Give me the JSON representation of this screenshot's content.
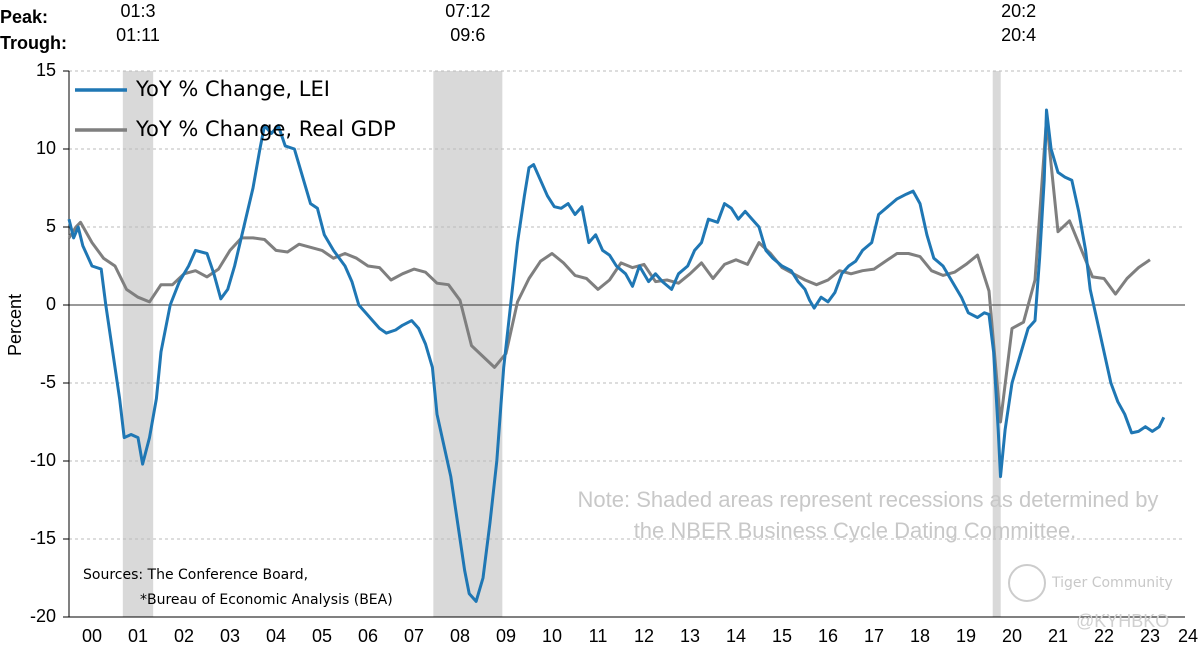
{
  "chart_data": {
    "type": "line",
    "peak_label": "Peak:",
    "trough_label": "Trough:",
    "y_label": "Percent",
    "recessions": [
      {
        "peak": "01:3",
        "trough": "01:11",
        "start": 2001.17,
        "end": 2001.83
      },
      {
        "peak": "07:12",
        "trough": "09:6",
        "start": 2007.92,
        "end": 2009.42
      },
      {
        "peak": "20:2",
        "trough": "20:4",
        "start": 2020.08,
        "end": 2020.25
      }
    ],
    "note": [
      "Note: Shaded areas represent recessions as determined by",
      "the NBER Business Cycle Dating Committee."
    ],
    "sources": [
      "Sources: The Conference Board,",
      "*Bureau of Economic Analysis (BEA)"
    ],
    "watermarks": [
      "Tiger Community",
      "@KYHBKO"
    ],
    "xlim": [
      2000,
      2024.26
    ],
    "xticks": [
      {
        "value": 2000.5,
        "label": "00"
      },
      {
        "value": 2001.5,
        "label": "01"
      },
      {
        "value": 2002.5,
        "label": "02"
      },
      {
        "value": 2003.5,
        "label": "03"
      },
      {
        "value": 2004.5,
        "label": "04"
      },
      {
        "value": 2005.5,
        "label": "05"
      },
      {
        "value": 2006.5,
        "label": "06"
      },
      {
        "value": 2007.5,
        "label": "07"
      },
      {
        "value": 2008.5,
        "label": "08"
      },
      {
        "value": 2009.5,
        "label": "09"
      },
      {
        "value": 2010.5,
        "label": "10"
      },
      {
        "value": 2011.5,
        "label": "11"
      },
      {
        "value": 2012.5,
        "label": "12"
      },
      {
        "value": 2013.5,
        "label": "13"
      },
      {
        "value": 2014.5,
        "label": "14"
      },
      {
        "value": 2015.5,
        "label": "15"
      },
      {
        "value": 2016.5,
        "label": "16"
      },
      {
        "value": 2017.5,
        "label": "17"
      },
      {
        "value": 2018.5,
        "label": "18"
      },
      {
        "value": 2019.5,
        "label": "19"
      },
      {
        "value": 2020.5,
        "label": "20"
      },
      {
        "value": 2021.5,
        "label": "21"
      },
      {
        "value": 2022.5,
        "label": "22"
      },
      {
        "value": 2023.5,
        "label": "23"
      },
      {
        "value": 2024.5,
        "label": "24"
      }
    ],
    "ylim": [
      -20,
      15
    ],
    "yticks": [
      15,
      10,
      5,
      0,
      -5,
      -10,
      -15,
      -20
    ],
    "grid": true,
    "legend": "top-left",
    "series": [
      {
        "name": "YoY % Change, LEI",
        "color": "#1f77b4",
        "x": [
          2000.0,
          2000.1,
          2000.2,
          2000.3,
          2000.5,
          2000.7,
          2000.8,
          2001.0,
          2001.1,
          2001.2,
          2001.35,
          2001.5,
          2001.6,
          2001.75,
          2001.9,
          2002.0,
          2002.2,
          2002.4,
          2002.6,
          2002.75,
          2003.0,
          2003.15,
          2003.3,
          2003.45,
          2003.6,
          2003.8,
          2004.0,
          2004.15,
          2004.25,
          2004.4,
          2004.55,
          2004.7,
          2004.9,
          2005.0,
          2005.1,
          2005.25,
          2005.4,
          2005.55,
          2005.75,
          2006.0,
          2006.15,
          2006.3,
          2006.45,
          2006.6,
          2006.75,
          2006.9,
          2007.1,
          2007.25,
          2007.45,
          2007.6,
          2007.75,
          2007.9,
          2008.0,
          2008.15,
          2008.3,
          2008.45,
          2008.6,
          2008.7,
          2008.85,
          2009.0,
          2009.15,
          2009.3,
          2009.45,
          2009.6,
          2009.75,
          2009.9,
          2010.0,
          2010.1,
          2010.25,
          2010.4,
          2010.55,
          2010.7,
          2010.85,
          2011.0,
          2011.15,
          2011.3,
          2011.45,
          2011.6,
          2011.75,
          2011.9,
          2012.1,
          2012.25,
          2012.4,
          2012.6,
          2012.75,
          2012.9,
          2013.1,
          2013.25,
          2013.45,
          2013.6,
          2013.75,
          2013.9,
          2014.1,
          2014.25,
          2014.4,
          2014.55,
          2014.7,
          2014.85,
          2015.0,
          2015.15,
          2015.3,
          2015.5,
          2015.7,
          2015.85,
          2016.0,
          2016.1,
          2016.2,
          2016.35,
          2016.5,
          2016.65,
          2016.8,
          2016.95,
          2017.1,
          2017.25,
          2017.45,
          2017.6,
          2017.8,
          2018.0,
          2018.2,
          2018.35,
          2018.5,
          2018.65,
          2018.8,
          2019.0,
          2019.2,
          2019.4,
          2019.55,
          2019.75,
          2019.9,
          2020.0,
          2020.1,
          2020.2,
          2020.25,
          2020.35,
          2020.5,
          2020.7,
          2020.85,
          2021.0,
          2021.1,
          2021.2,
          2021.25,
          2021.35,
          2021.5,
          2021.65,
          2021.8,
          2021.95,
          2022.1,
          2022.2,
          2022.35,
          2022.5,
          2022.65,
          2022.8,
          2022.95,
          2023.1,
          2023.25,
          2023.4,
          2023.55,
          2023.7,
          2023.8
        ],
        "values": [
          5.5,
          4.3,
          5.0,
          3.8,
          2.5,
          2.3,
          0,
          -4,
          -6,
          -8.5,
          -8.3,
          -8.5,
          -10.2,
          -8.5,
          -6,
          -3,
          0,
          1.5,
          2.5,
          3.5,
          3.3,
          2.0,
          0.4,
          1.0,
          2.5,
          5.0,
          7.5,
          10.0,
          11.5,
          11.0,
          11.5,
          10.2,
          10.0,
          9.0,
          8.0,
          6.5,
          6.2,
          4.5,
          3.5,
          2.5,
          1.5,
          0,
          -0.5,
          -1.0,
          -1.5,
          -1.8,
          -1.6,
          -1.3,
          -1.0,
          -1.5,
          -2.5,
          -4.0,
          -7,
          -9,
          -11,
          -14,
          -17,
          -18.5,
          -19,
          -17.5,
          -14,
          -10,
          -4,
          0,
          4,
          7,
          8.8,
          9.0,
          8.0,
          7.0,
          6.3,
          6.2,
          6.5,
          5.8,
          6.3,
          4.0,
          4.5,
          3.5,
          3.2,
          2.5,
          2.0,
          1.2,
          2.5,
          1.5,
          2.0,
          1.5,
          1.0,
          2.0,
          2.5,
          3.5,
          4.0,
          5.5,
          5.3,
          6.5,
          6.2,
          5.5,
          6.0,
          5.5,
          5.0,
          3.5,
          3.0,
          2.5,
          2.2,
          1.5,
          1.0,
          0.3,
          -0.2,
          0.5,
          0.2,
          0.8,
          2.0,
          2.5,
          2.8,
          3.5,
          4.0,
          5.8,
          6.3,
          6.8,
          7.1,
          7.3,
          6.5,
          4.5,
          3.0,
          2.5,
          1.5,
          0.5,
          -0.5,
          -0.8,
          -0.5,
          -0.6,
          -3,
          -8,
          -11,
          -8,
          -5,
          -3,
          -1.5,
          -1.0,
          3,
          8,
          12.5,
          10,
          8.5,
          8.2,
          8.0,
          6.0,
          3.5,
          1.0,
          -1.0,
          -3.0,
          -5.0,
          -6.2,
          -7.0,
          -8.2,
          -8.1,
          -7.8,
          -8.1,
          -7.8,
          -7.2
        ]
      },
      {
        "name": "YoY % Change, Real GDP",
        "color": "#7f7f7f",
        "x": [
          2000.0,
          2000.15,
          2000.25,
          2000.5,
          2000.75,
          2001.0,
          2001.25,
          2001.5,
          2001.75,
          2002.0,
          2002.25,
          2002.5,
          2002.75,
          2003.0,
          2003.25,
          2003.5,
          2003.75,
          2004.0,
          2004.25,
          2004.5,
          2004.75,
          2005.0,
          2005.25,
          2005.5,
          2005.75,
          2006.0,
          2006.25,
          2006.5,
          2006.75,
          2007.0,
          2007.25,
          2007.5,
          2007.75,
          2008.0,
          2008.25,
          2008.5,
          2008.75,
          2009.0,
          2009.25,
          2009.5,
          2009.75,
          2010.0,
          2010.25,
          2010.5,
          2010.75,
          2011.0,
          2011.25,
          2011.5,
          2011.75,
          2012.0,
          2012.25,
          2012.5,
          2012.75,
          2013.0,
          2013.25,
          2013.5,
          2013.75,
          2014.0,
          2014.25,
          2014.5,
          2014.75,
          2015.0,
          2015.25,
          2015.5,
          2015.75,
          2016.0,
          2016.25,
          2016.5,
          2016.75,
          2017.0,
          2017.25,
          2017.5,
          2017.75,
          2018.0,
          2018.25,
          2018.5,
          2018.75,
          2019.0,
          2019.25,
          2019.5,
          2019.75,
          2020.0,
          2020.25,
          2020.5,
          2020.75,
          2021.0,
          2021.25,
          2021.5,
          2021.75,
          2022.0,
          2022.25,
          2022.5,
          2022.75,
          2023.0,
          2023.25,
          2023.5
        ],
        "values": [
          4.3,
          5.0,
          5.3,
          4.0,
          3.0,
          2.5,
          1.0,
          0.5,
          0.2,
          1.3,
          1.3,
          2.0,
          2.2,
          1.8,
          2.3,
          3.5,
          4.3,
          4.3,
          4.2,
          3.5,
          3.4,
          3.9,
          3.7,
          3.5,
          3.0,
          3.3,
          3.0,
          2.5,
          2.4,
          1.6,
          2.0,
          2.3,
          2.1,
          1.4,
          1.3,
          0.3,
          -2.6,
          -3.3,
          -4.0,
          -3.1,
          0.2,
          1.7,
          2.8,
          3.3,
          2.7,
          1.9,
          1.7,
          1.0,
          1.6,
          2.7,
          2.4,
          2.6,
          1.5,
          1.6,
          1.4,
          2.0,
          2.7,
          1.7,
          2.6,
          2.9,
          2.6,
          4.0,
          3.3,
          2.4,
          2.0,
          1.6,
          1.3,
          1.6,
          2.2,
          2.0,
          2.2,
          2.3,
          2.8,
          3.3,
          3.3,
          3.1,
          2.2,
          1.9,
          2.1,
          2.6,
          3.2,
          0.9,
          -7.5,
          -1.5,
          -1.1,
          1.6,
          11.9,
          4.7,
          5.4,
          3.6,
          1.8,
          1.7,
          0.7,
          1.7,
          2.4,
          2.9
        ]
      }
    ]
  }
}
